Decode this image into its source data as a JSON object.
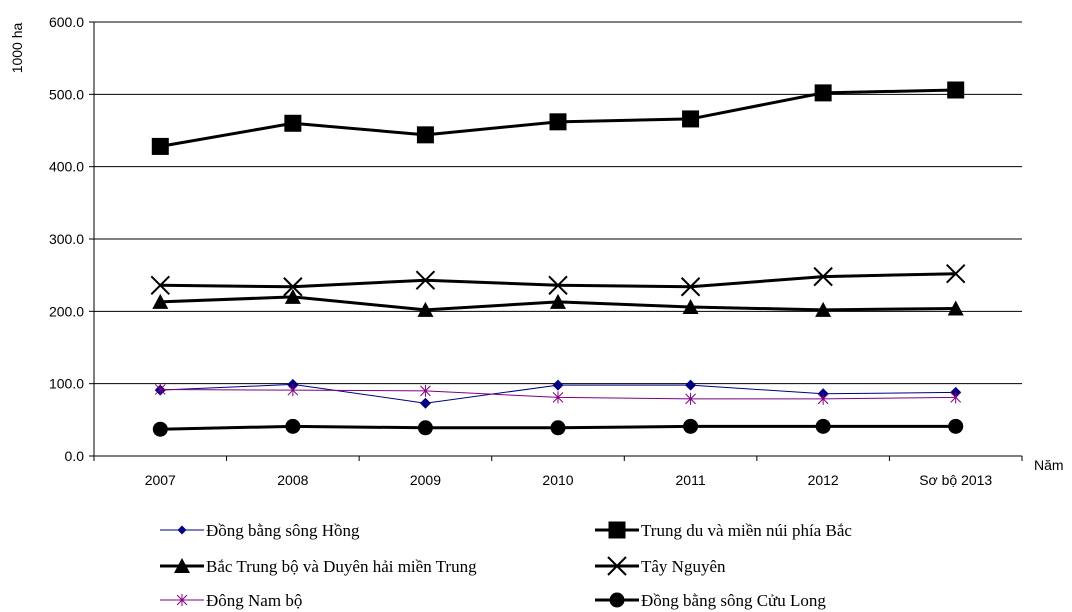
{
  "chart_data": {
    "type": "line",
    "title": "",
    "xlabel": "Năm",
    "ylabel": "1000 ha",
    "categories": [
      "2007",
      "2008",
      "2009",
      "2010",
      "2011",
      "2012",
      "Sơ bộ 2013"
    ],
    "ylim": [
      0,
      600
    ],
    "yticks": [
      0,
      100,
      200,
      300,
      400,
      500,
      600
    ],
    "ytick_labels": [
      "0.0",
      "100.0",
      "200.0",
      "300.0",
      "400.0",
      "500.0",
      "600.0"
    ],
    "grid": true,
    "legend_position": "bottom",
    "series": [
      {
        "name": "Đồng bằng sông Hồng",
        "values": [
          91,
          99,
          73,
          98,
          98,
          86,
          88
        ],
        "color": "#000080",
        "marker": "diamond",
        "line_weight": "thin"
      },
      {
        "name": "Trung du và miền núi phía Bắc",
        "values": [
          428,
          460,
          444,
          462,
          466,
          502,
          506
        ],
        "color": "#000000",
        "marker": "square",
        "line_weight": "thick"
      },
      {
        "name": " Bắc Trung bộ và Duyên hải miền Trung",
        "values": [
          213,
          220,
          202,
          213,
          206,
          202,
          204
        ],
        "color": "#000000",
        "marker": "triangle",
        "line_weight": "thick"
      },
      {
        "name": "Tây Nguyên",
        "values": [
          236,
          234,
          243,
          236,
          234,
          248,
          252
        ],
        "color": "#000000",
        "marker": "x",
        "line_weight": "thick"
      },
      {
        "name": "Đông Nam bộ",
        "values": [
          92,
          91,
          90,
          81,
          79,
          79,
          81
        ],
        "color": "#800080",
        "marker": "star",
        "line_weight": "thin"
      },
      {
        "name": "Đồng bằng sông Cửu Long",
        "values": [
          37,
          41,
          39,
          39,
          41,
          41,
          41
        ],
        "color": "#000000",
        "marker": "circle",
        "line_weight": "thick"
      }
    ]
  }
}
